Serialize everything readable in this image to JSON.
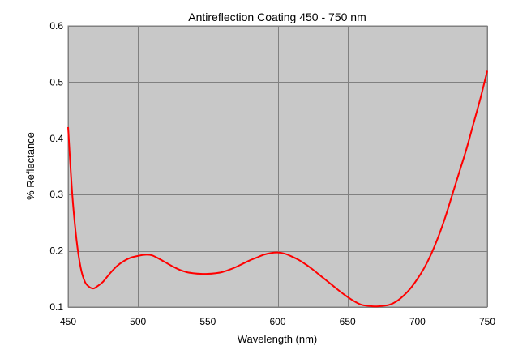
{
  "chart_data": {
    "type": "line",
    "title": "Antireflection Coating 450 - 750 nm",
    "xlabel": "Wavelength (nm)",
    "ylabel": "% Reflectance",
    "xlim": [
      450,
      750
    ],
    "ylim": [
      0.1,
      0.6
    ],
    "xticks": [
      450,
      500,
      550,
      600,
      650,
      700,
      750
    ],
    "yticks": [
      0.1,
      0.2,
      0.3,
      0.4,
      0.5,
      0.6
    ],
    "grid": true,
    "plot_background": "#c8c8c8",
    "grid_color": "#808080",
    "series": [
      {
        "color": "#ff0000",
        "x": [
          450,
          453,
          456,
          459,
          462,
          465,
          468,
          471,
          475,
          480,
          485,
          490,
          495,
          500,
          505,
          510,
          515,
          520,
          525,
          530,
          535,
          540,
          545,
          550,
          555,
          560,
          565,
          570,
          575,
          580,
          585,
          590,
          595,
          600,
          605,
          610,
          615,
          620,
          625,
          630,
          635,
          640,
          645,
          650,
          655,
          660,
          665,
          670,
          675,
          680,
          685,
          690,
          695,
          700,
          705,
          710,
          715,
          720,
          725,
          730,
          735,
          740,
          745,
          750
        ],
        "y": [
          0.42,
          0.3,
          0.22,
          0.17,
          0.145,
          0.136,
          0.133,
          0.137,
          0.145,
          0.16,
          0.173,
          0.182,
          0.188,
          0.191,
          0.193,
          0.192,
          0.186,
          0.179,
          0.172,
          0.166,
          0.162,
          0.16,
          0.159,
          0.159,
          0.16,
          0.162,
          0.166,
          0.171,
          0.177,
          0.183,
          0.188,
          0.193,
          0.196,
          0.197,
          0.195,
          0.19,
          0.184,
          0.176,
          0.167,
          0.157,
          0.147,
          0.137,
          0.127,
          0.118,
          0.11,
          0.104,
          0.102,
          0.101,
          0.102,
          0.104,
          0.11,
          0.12,
          0.133,
          0.15,
          0.17,
          0.195,
          0.225,
          0.26,
          0.3,
          0.34,
          0.38,
          0.425,
          0.47,
          0.52
        ]
      }
    ]
  }
}
